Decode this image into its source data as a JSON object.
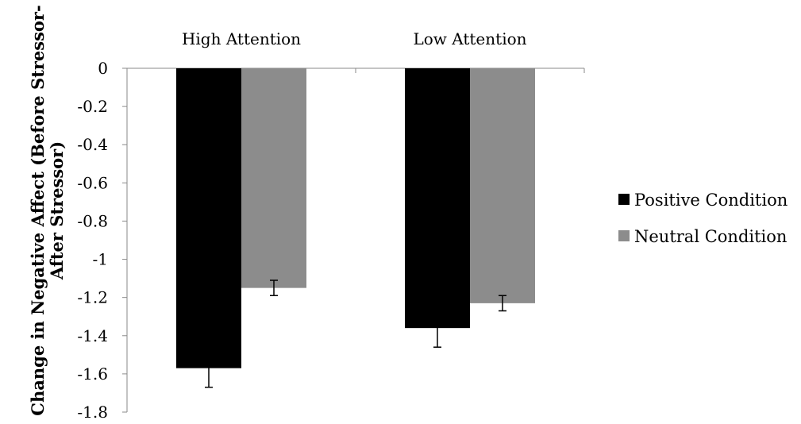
{
  "chart_data": {
    "type": "bar",
    "title": "",
    "xlabel": "",
    "ylabel_lines": [
      "Change in Negative Affect (Before Stressor-",
      "After Stressor)"
    ],
    "categories": [
      "High Attention",
      "Low Attention"
    ],
    "category_axis_position": "top",
    "ylim": [
      -1.8,
      0
    ],
    "yticks": [
      0,
      -0.2,
      -0.4,
      -0.6,
      -0.8,
      -1,
      -1.2,
      -1.4,
      -1.6,
      -1.8
    ],
    "ytick_labels": [
      "0",
      "-0.2",
      "-0.4",
      "-0.6",
      "-0.8",
      "-1",
      "-1.2",
      "-1.4",
      "-1.6",
      "-1.8"
    ],
    "grid": false,
    "legend_position": "right",
    "series": [
      {
        "name": "Positive Condition",
        "color": "#000000",
        "values": [
          -1.57,
          -1.36
        ],
        "error": [
          0.1,
          0.1
        ]
      },
      {
        "name": "Neutral Condition",
        "color": "#8c8c8c",
        "values": [
          -1.15,
          -1.23
        ],
        "error": [
          0.04,
          0.04
        ]
      }
    ]
  }
}
